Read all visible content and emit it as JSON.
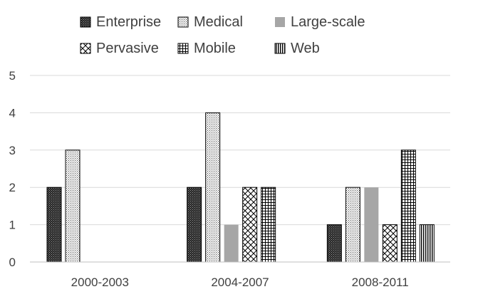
{
  "chart_data": {
    "type": "bar",
    "title": "",
    "xlabel": "",
    "ylabel": "",
    "categories": [
      "2000-2003",
      "2004-2007",
      "2008-2011"
    ],
    "ylim": [
      0,
      5
    ],
    "yticks": [
      "0",
      "1",
      "2",
      "3",
      "4",
      "5"
    ],
    "grid": true,
    "legend_position": "top",
    "series": [
      {
        "name": "Enterprise",
        "values": [
          2,
          2,
          1
        ],
        "pattern": "dark-dots"
      },
      {
        "name": "Medical",
        "values": [
          3,
          4,
          2
        ],
        "pattern": "light-dots"
      },
      {
        "name": "Large-scale",
        "values": [
          0,
          1,
          2
        ],
        "pattern": "solid-gray"
      },
      {
        "name": "Pervasive",
        "values": [
          0,
          2,
          1
        ],
        "pattern": "diagonal-cross"
      },
      {
        "name": "Mobile",
        "values": [
          0,
          2,
          3
        ],
        "pattern": "grid"
      },
      {
        "name": "Web",
        "values": [
          0,
          0,
          1
        ],
        "pattern": "vertical-lines"
      }
    ],
    "colors": {
      "grid": "#d9d9d9",
      "axis": "#bfbfbf",
      "text": "#404040",
      "bar_stroke": "#000000",
      "gray_fill": "#a6a6a6"
    }
  }
}
